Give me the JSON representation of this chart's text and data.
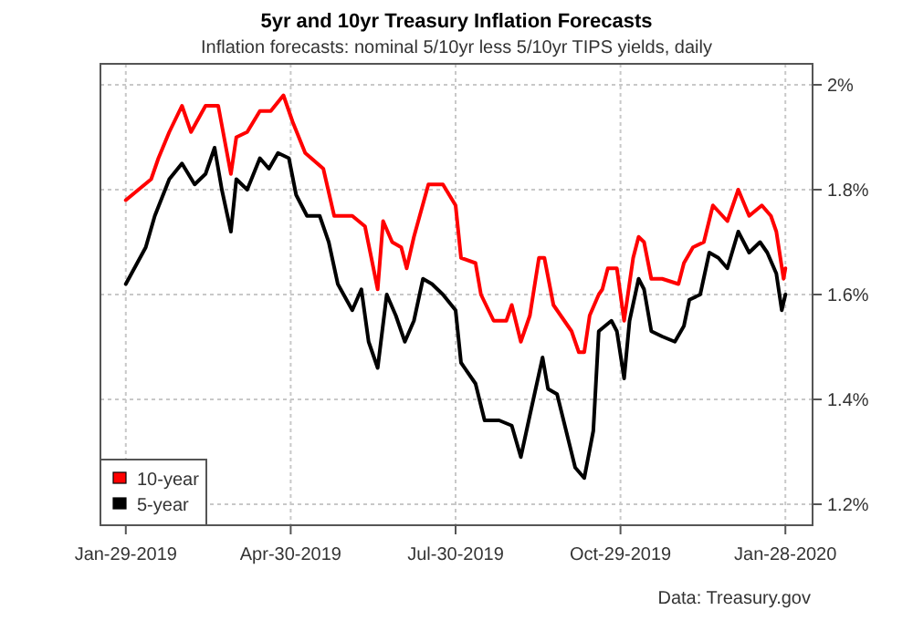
{
  "chart_data": {
    "type": "line",
    "title": "5yr and 10yr Treasury Inflation Forecasts",
    "subtitle": "Inflation forecasts: nominal 5/10yr less 5/10yr TIPS yields, daily",
    "annotations": [
      "Data: Treasury.gov"
    ],
    "xlim": [
      "2019-01-15",
      "2020-02-12"
    ],
    "ylim": [
      1.16,
      2.04
    ],
    "xticks": [
      {
        "value": "2019-01-29",
        "label": "Jan-29-2019"
      },
      {
        "value": "2019-04-30",
        "label": "Apr-30-2019"
      },
      {
        "value": "2019-07-30",
        "label": "Jul-30-2019"
      },
      {
        "value": "2019-10-29",
        "label": "Oct-29-2019"
      },
      {
        "value": "2020-01-28",
        "label": "Jan-28-2020"
      }
    ],
    "yticks": [
      {
        "value": 1.2,
        "label": "1.2%"
      },
      {
        "value": 1.4,
        "label": "1.4%"
      },
      {
        "value": 1.6,
        "label": "1.6%"
      },
      {
        "value": 1.8,
        "label": "1.8%"
      },
      {
        "value": 2,
        "label": "2%"
      }
    ],
    "grid": true,
    "legend": "bottom left",
    "line_style": "solid",
    "series": [
      {
        "name": "10-year",
        "color": "#ff0000",
        "x": [
          "2019-01-29",
          "2019-02-12",
          "2019-02-16",
          "2019-02-22",
          "2019-03-01",
          "2019-03-06",
          "2019-03-14",
          "2019-03-21",
          "2019-03-28",
          "2019-03-31",
          "2019-04-06",
          "2019-04-13",
          "2019-04-19",
          "2019-04-26",
          "2019-05-01",
          "2019-05-08",
          "2019-05-18",
          "2019-05-24",
          "2019-06-03",
          "2019-06-10",
          "2019-06-17",
          "2019-06-20",
          "2019-06-25",
          "2019-06-30",
          "2019-07-03",
          "2019-07-07",
          "2019-07-15",
          "2019-07-23",
          "2019-07-30",
          "2019-08-02",
          "2019-08-10",
          "2019-08-13",
          "2019-08-20",
          "2019-08-27",
          "2019-08-30",
          "2019-09-04",
          "2019-09-09",
          "2019-09-14",
          "2019-09-17",
          "2019-09-22",
          "2019-10-02",
          "2019-10-06",
          "2019-10-09",
          "2019-10-12",
          "2019-10-17",
          "2019-10-19",
          "2019-10-22",
          "2019-10-27",
          "2019-10-31",
          "2019-11-05",
          "2019-11-08",
          "2019-11-11",
          "2019-11-15",
          "2019-11-21",
          "2019-11-30",
          "2019-12-03",
          "2019-12-08",
          "2019-12-14",
          "2019-12-19",
          "2019-12-27",
          "2020-01-02",
          "2020-01-08",
          "2020-01-15",
          "2020-01-20",
          "2020-01-23",
          "2020-01-27",
          "2020-01-28"
        ],
        "values": [
          1.78,
          1.82,
          1.86,
          1.91,
          1.96,
          1.91,
          1.96,
          1.96,
          1.83,
          1.9,
          1.91,
          1.95,
          1.95,
          1.98,
          1.93,
          1.87,
          1.84,
          1.75,
          1.75,
          1.73,
          1.61,
          1.74,
          1.7,
          1.69,
          1.65,
          1.71,
          1.81,
          1.81,
          1.77,
          1.67,
          1.66,
          1.6,
          1.55,
          1.55,
          1.58,
          1.51,
          1.56,
          1.67,
          1.67,
          1.58,
          1.53,
          1.49,
          1.49,
          1.56,
          1.6,
          1.61,
          1.65,
          1.65,
          1.55,
          1.67,
          1.71,
          1.7,
          1.63,
          1.63,
          1.62,
          1.66,
          1.69,
          1.7,
          1.77,
          1.74,
          1.8,
          1.75,
          1.77,
          1.75,
          1.72,
          1.63,
          1.65
        ]
      },
      {
        "name": "5-year",
        "color": "#000000",
        "x": [
          "2019-01-29",
          "2019-02-09",
          "2019-02-14",
          "2019-02-22",
          "2019-03-01",
          "2019-03-08",
          "2019-03-14",
          "2019-03-19",
          "2019-03-23",
          "2019-03-28",
          "2019-03-31",
          "2019-04-06",
          "2019-04-13",
          "2019-04-18",
          "2019-04-23",
          "2019-04-29",
          "2019-05-03",
          "2019-05-09",
          "2019-05-16",
          "2019-05-21",
          "2019-05-26",
          "2019-06-03",
          "2019-06-08",
          "2019-06-12",
          "2019-06-17",
          "2019-06-22",
          "2019-06-27",
          "2019-07-02",
          "2019-07-07",
          "2019-07-12",
          "2019-07-17",
          "2019-07-23",
          "2019-07-30",
          "2019-08-02",
          "2019-08-10",
          "2019-08-15",
          "2019-08-23",
          "2019-08-30",
          "2019-09-04",
          "2019-09-09",
          "2019-09-16",
          "2019-09-19",
          "2019-09-24",
          "2019-09-29",
          "2019-10-04",
          "2019-10-09",
          "2019-10-14",
          "2019-10-17",
          "2019-10-24",
          "2019-10-27",
          "2019-10-31",
          "2019-11-03",
          "2019-11-08",
          "2019-11-11",
          "2019-11-15",
          "2019-11-21",
          "2019-11-28",
          "2019-12-03",
          "2019-12-06",
          "2019-12-12",
          "2019-12-17",
          "2019-12-22",
          "2019-12-27",
          "2020-01-02",
          "2020-01-08",
          "2020-01-14",
          "2020-01-18",
          "2020-01-23",
          "2020-01-26",
          "2020-01-28"
        ],
        "values": [
          1.62,
          1.69,
          1.75,
          1.82,
          1.85,
          1.81,
          1.83,
          1.88,
          1.8,
          1.72,
          1.82,
          1.8,
          1.86,
          1.84,
          1.87,
          1.86,
          1.79,
          1.75,
          1.75,
          1.7,
          1.62,
          1.57,
          1.61,
          1.51,
          1.46,
          1.6,
          1.56,
          1.51,
          1.55,
          1.63,
          1.62,
          1.6,
          1.57,
          1.47,
          1.43,
          1.36,
          1.36,
          1.35,
          1.29,
          1.37,
          1.48,
          1.42,
          1.41,
          1.34,
          1.27,
          1.25,
          1.34,
          1.53,
          1.55,
          1.53,
          1.44,
          1.55,
          1.63,
          1.61,
          1.53,
          1.52,
          1.51,
          1.54,
          1.59,
          1.6,
          1.68,
          1.67,
          1.65,
          1.72,
          1.68,
          1.7,
          1.68,
          1.64,
          1.57,
          1.6
        ]
      }
    ]
  }
}
